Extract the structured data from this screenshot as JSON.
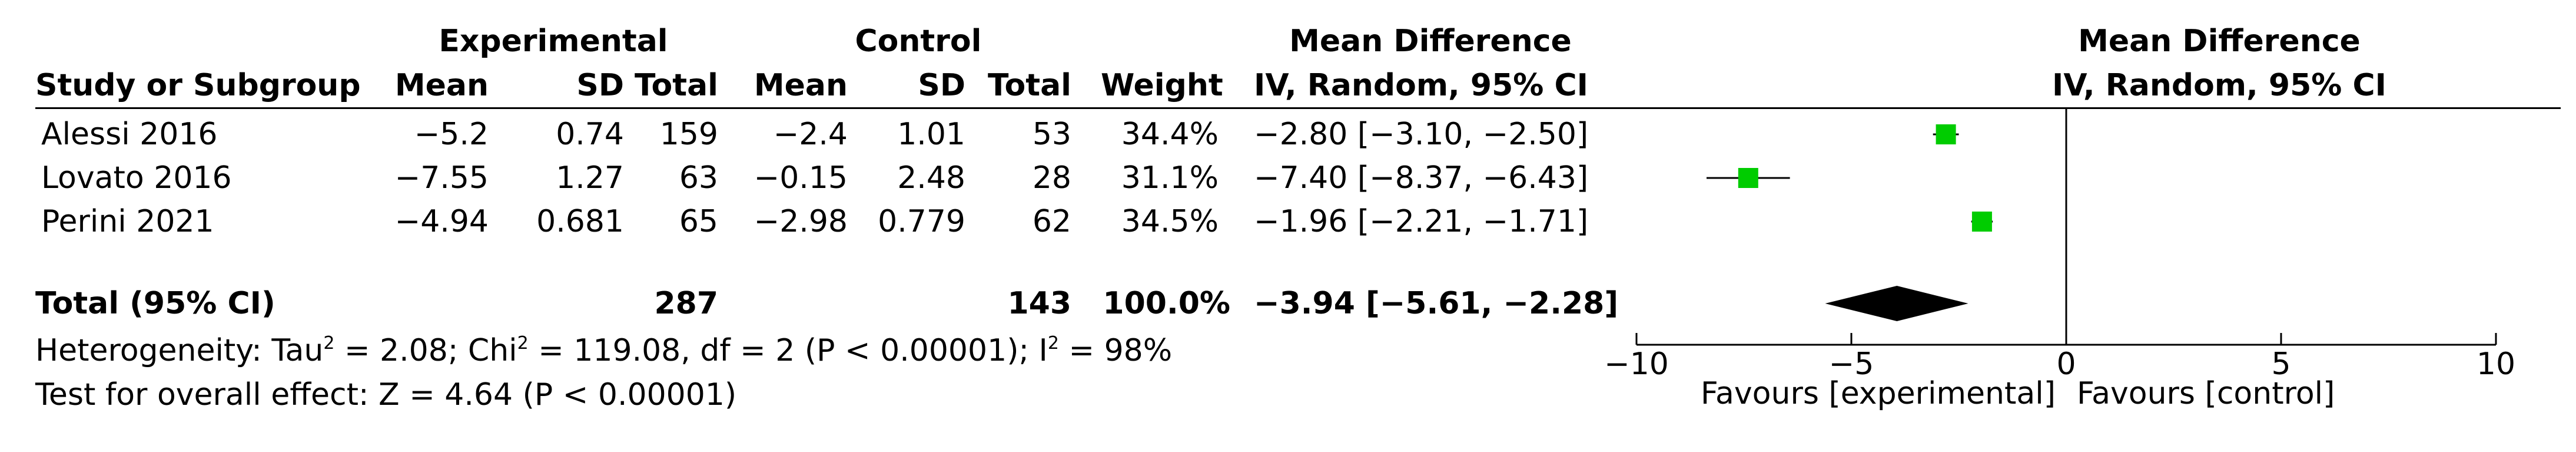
{
  "header": {
    "experimental": "Experimental",
    "control": "Control",
    "mean_difference": "Mean Difference",
    "study_or_subgroup": "Study or Subgroup",
    "mean": "Mean",
    "sd": "SD",
    "total": "Total",
    "weight": "Weight",
    "iv_random": "IV, Random, 95% CI"
  },
  "studies": [
    {
      "name": "Alessi 2016",
      "exp_mean": "−5.2",
      "exp_sd": "0.74",
      "exp_total": "159",
      "ctl_mean": "−2.4",
      "ctl_sd": "1.01",
      "ctl_total": "53",
      "weight": "34.4%",
      "ci": "−2.80 [−3.10, −2.50]"
    },
    {
      "name": "Lovato 2016",
      "exp_mean": "−7.55",
      "exp_sd": "1.27",
      "exp_total": "63",
      "ctl_mean": "−0.15",
      "ctl_sd": "2.48",
      "ctl_total": "28",
      "weight": "31.1%",
      "ci": "−7.40 [−8.37, −6.43]"
    },
    {
      "name": "Perini 2021",
      "exp_mean": "−4.94",
      "exp_sd": "0.681",
      "exp_total": "65",
      "ctl_mean": "−2.98",
      "ctl_sd": "0.779",
      "ctl_total": "62",
      "weight": "34.5%",
      "ci": "−1.96 [−2.21, −1.71]"
    }
  ],
  "total": {
    "label": "Total (95% CI)",
    "exp_total": "287",
    "ctl_total": "143",
    "weight": "100.0%",
    "ci": "−3.94 [−5.61, −2.28]"
  },
  "heterogeneity": {
    "prefix": "Heterogeneity: Tau",
    "sup1": "2",
    "mid": " = 2.08; Chi",
    "sup2": "2",
    "mid2": " = 119.08, df = 2 (P < 0.00001); I",
    "sup3": "2",
    "suffix": " = 98%"
  },
  "overall_effect": "Test for overall effect: Z = 4.64 (P < 0.00001)",
  "colors": {
    "marker": "#00cc00",
    "diamond": "#000000"
  },
  "chart_data": {
    "type": "forest",
    "title": "Mean Difference",
    "subtitle": "IV, Random, 95% CI",
    "xlim": [
      -10,
      10
    ],
    "xticks": [
      -10,
      -5,
      0,
      5,
      10
    ],
    "xtick_labels": [
      "−10",
      "−5",
      "0",
      "5",
      "10"
    ],
    "xlabel_left": "Favours [experimental]",
    "xlabel_right": "Favours [control]",
    "series": [
      {
        "study": "Alessi 2016",
        "md": -2.8,
        "lower": -3.1,
        "upper": -2.5,
        "weight": 34.4
      },
      {
        "study": "Lovato 2016",
        "md": -7.4,
        "lower": -8.37,
        "upper": -6.43,
        "weight": 31.1
      },
      {
        "study": "Perini 2021",
        "md": -1.96,
        "lower": -2.21,
        "upper": -1.71,
        "weight": 34.5
      }
    ],
    "pooled": {
      "md": -3.94,
      "lower": -5.61,
      "upper": -2.28
    }
  }
}
